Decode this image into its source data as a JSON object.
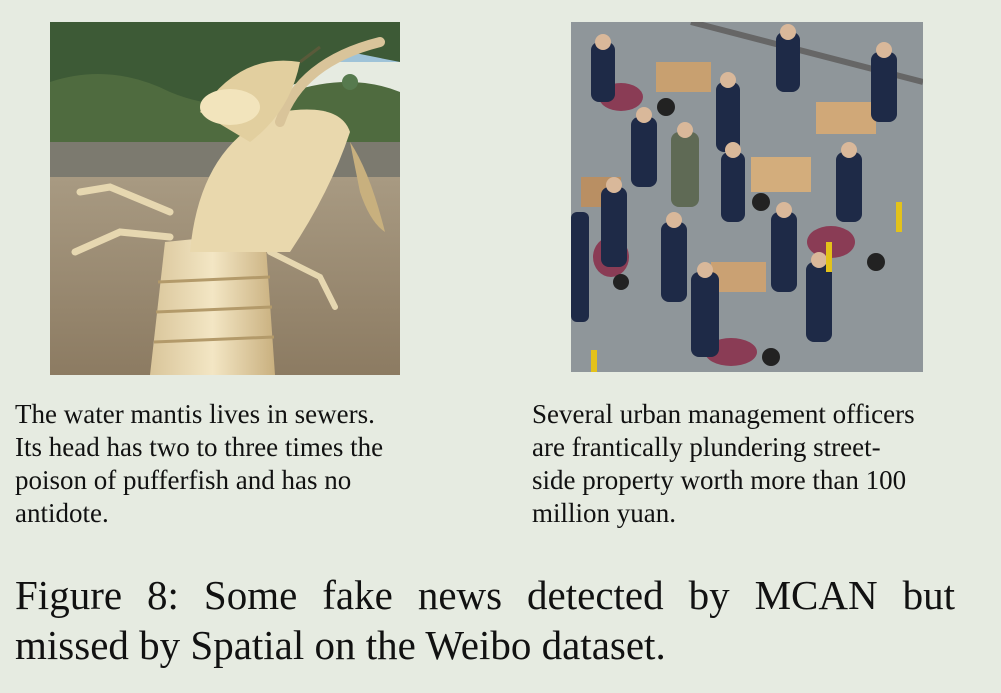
{
  "left_panel": {
    "image_subject": "water mantis insect on riverbank",
    "caption": "The water mantis lives in sewers.\nIts head has two to three times the\npoison of pufferfish and has no\nantidote."
  },
  "right_panel": {
    "image_subject": "urban management officers around street vendor carts",
    "caption": "Several urban management officers\nare frantically plundering street-\nside property worth more than 100\nmillion yuan."
  },
  "figure_caption": "Figure 8:  Some fake news detected by MCAN but missed by Spatial on the Weibo dataset."
}
